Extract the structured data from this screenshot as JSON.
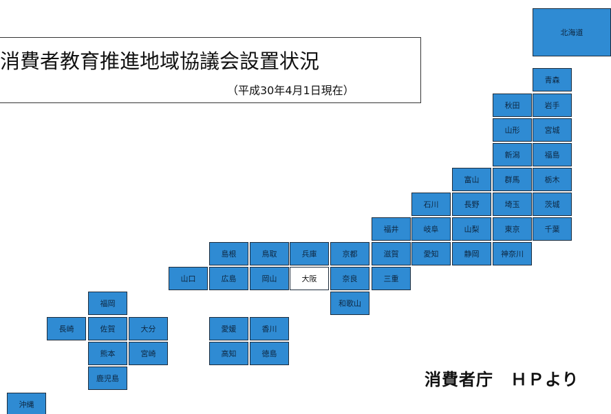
{
  "title": "消費者教育推進地域協議会設置状況",
  "subtitle": "（平成30年4月1日現在）",
  "source": "消費者庁　ＨＰより",
  "colors": {
    "established": "#2f8bd3",
    "not_established": "#ffffff",
    "border": "#1d2b3a"
  },
  "prefectures": [
    {
      "id": "hokkaido",
      "name": "北海道",
      "status": "established"
    },
    {
      "id": "aomori",
      "name": "青森",
      "status": "established"
    },
    {
      "id": "akita",
      "name": "秋田",
      "status": "established"
    },
    {
      "id": "iwate",
      "name": "岩手",
      "status": "established"
    },
    {
      "id": "yamagata",
      "name": "山形",
      "status": "established"
    },
    {
      "id": "miyagi",
      "name": "宮城",
      "status": "established"
    },
    {
      "id": "niigata",
      "name": "新潟",
      "status": "established"
    },
    {
      "id": "fukushima",
      "name": "福島",
      "status": "established"
    },
    {
      "id": "toyama",
      "name": "富山",
      "status": "established"
    },
    {
      "id": "gunma",
      "name": "群馬",
      "status": "established"
    },
    {
      "id": "tochigi",
      "name": "栃木",
      "status": "established"
    },
    {
      "id": "ishikawa",
      "name": "石川",
      "status": "established"
    },
    {
      "id": "nagano",
      "name": "長野",
      "status": "established"
    },
    {
      "id": "saitama",
      "name": "埼玉",
      "status": "established"
    },
    {
      "id": "ibaraki",
      "name": "茨城",
      "status": "established"
    },
    {
      "id": "fukui",
      "name": "福井",
      "status": "established"
    },
    {
      "id": "gifu",
      "name": "岐阜",
      "status": "established"
    },
    {
      "id": "yamanashi",
      "name": "山梨",
      "status": "established"
    },
    {
      "id": "tokyo",
      "name": "東京",
      "status": "established"
    },
    {
      "id": "chiba",
      "name": "千葉",
      "status": "established"
    },
    {
      "id": "shimane",
      "name": "島根",
      "status": "established"
    },
    {
      "id": "tottori",
      "name": "鳥取",
      "status": "established"
    },
    {
      "id": "hyogo",
      "name": "兵庫",
      "status": "established"
    },
    {
      "id": "kyoto",
      "name": "京都",
      "status": "established"
    },
    {
      "id": "shiga",
      "name": "滋賀",
      "status": "established"
    },
    {
      "id": "aichi",
      "name": "愛知",
      "status": "established"
    },
    {
      "id": "shizuoka",
      "name": "静岡",
      "status": "established"
    },
    {
      "id": "kanagawa",
      "name": "神奈川",
      "status": "established"
    },
    {
      "id": "yamaguchi",
      "name": "山口",
      "status": "established"
    },
    {
      "id": "hiroshima",
      "name": "広島",
      "status": "established"
    },
    {
      "id": "okayama",
      "name": "岡山",
      "status": "established"
    },
    {
      "id": "osaka",
      "name": "大阪",
      "status": "not_established"
    },
    {
      "id": "nara",
      "name": "奈良",
      "status": "established"
    },
    {
      "id": "mie",
      "name": "三重",
      "status": "established"
    },
    {
      "id": "wakayama",
      "name": "和歌山",
      "status": "established"
    },
    {
      "id": "fukuoka",
      "name": "福岡",
      "status": "established"
    },
    {
      "id": "nagasaki",
      "name": "長崎",
      "status": "established"
    },
    {
      "id": "saga",
      "name": "佐賀",
      "status": "established"
    },
    {
      "id": "oita",
      "name": "大分",
      "status": "established"
    },
    {
      "id": "ehime",
      "name": "愛媛",
      "status": "established"
    },
    {
      "id": "kagawa",
      "name": "香川",
      "status": "established"
    },
    {
      "id": "kumamoto",
      "name": "熊本",
      "status": "established"
    },
    {
      "id": "miyazaki",
      "name": "宮崎",
      "status": "established"
    },
    {
      "id": "kochi",
      "name": "高知",
      "status": "established"
    },
    {
      "id": "tokushima",
      "name": "徳島",
      "status": "established"
    },
    {
      "id": "kagoshima",
      "name": "鹿児島",
      "status": "established"
    },
    {
      "id": "okinawa",
      "name": "沖縄",
      "status": "established"
    }
  ]
}
